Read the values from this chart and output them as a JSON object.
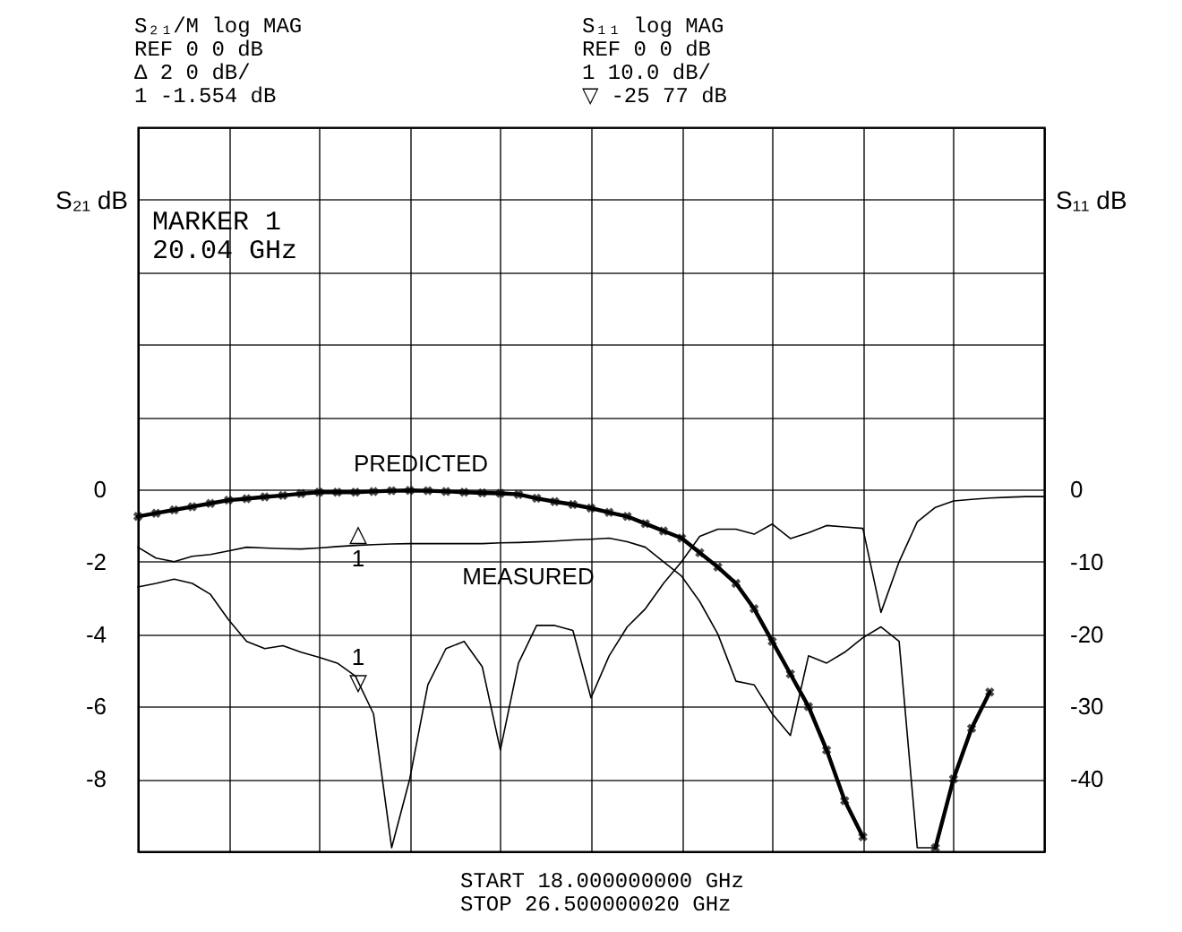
{
  "chart_data": {
    "type": "line",
    "ylabel": "S₂₁ dB",
    "y2label": "S₁₁ dB",
    "categories": [
      null,
      null,
      null,
      null,
      null,
      null,
      null,
      null,
      null,
      null,
      null,
      null,
      null,
      null,
      null,
      null,
      null,
      null,
      null,
      null,
      null,
      null,
      null,
      null,
      null,
      null,
      null,
      null,
      null,
      null,
      null,
      null,
      null,
      null,
      null,
      null,
      null,
      null,
      null,
      null,
      null,
      null,
      null,
      null,
      null,
      null,
      null,
      null,
      null,
      null,
      null
    ],
    "ylim": [
      -10,
      10
    ],
    "yticks": [
      {
        "value": 10,
        "label": null
      },
      {
        "value": 8,
        "label": null
      },
      {
        "value": 6,
        "label": null
      },
      {
        "value": 4,
        "label": null
      },
      {
        "value": 2,
        "label": null
      },
      0,
      -2,
      -4,
      -6,
      -8,
      {
        "value": -10,
        "label": null
      }
    ],
    "y2lim": [
      -50,
      50
    ],
    "y2ticks": [
      0,
      -10,
      -20,
      -30,
      -40
    ],
    "tick_labels": "y",
    "grid": true,
    "series": [
      {
        "color": "#000000",
        "marker": "cross",
        "values": [
          -0.75,
          -0.66,
          -0.57,
          -0.48,
          -0.39,
          -0.3,
          -0.26,
          -0.21,
          -0.17,
          -0.12,
          -0.08,
          -0.08,
          -0.08,
          -0.06,
          -0.04,
          -0.03,
          -0.04,
          -0.06,
          -0.08,
          -0.1,
          -0.11,
          -0.14,
          -0.25,
          -0.34,
          -0.42,
          -0.52,
          -0.64,
          -0.75,
          -0.95,
          -1.15,
          -1.35,
          -1.75,
          -2.15,
          -2.6,
          -3.3,
          -4.2,
          -5.1,
          -6.0,
          -7.2,
          -8.6,
          -9.6,
          null,
          null,
          null,
          null,
          null,
          null,
          null,
          null,
          null,
          null
        ]
      },
      {
        "color": "#000000",
        "marker": "cross",
        "values": [
          null,
          null,
          null,
          null,
          null,
          null,
          null,
          null,
          null,
          null,
          null,
          null,
          null,
          null,
          null,
          null,
          null,
          null,
          null,
          null,
          null,
          null,
          null,
          null,
          null,
          null,
          null,
          null,
          null,
          null,
          null,
          null,
          null,
          null,
          null,
          null,
          null,
          null,
          null,
          null,
          null,
          null,
          null,
          null,
          -9.9,
          -8.0,
          -6.6,
          -5.6,
          null,
          null,
          null
        ]
      },
      {
        "color": "#000000",
        "values": [
          -1.6,
          -1.9,
          -2.0,
          -1.85,
          -1.8,
          -1.7,
          -1.6,
          -1.62,
          -1.64,
          -1.65,
          -1.62,
          -1.58,
          -1.55,
          -1.53,
          -1.51,
          -1.5,
          -1.5,
          -1.5,
          -1.5,
          -1.5,
          -1.48,
          -1.47,
          -1.45,
          -1.43,
          -1.4,
          -1.38,
          -1.35,
          -1.45,
          -1.6,
          -2.0,
          -2.4,
          -3.1,
          -4.0,
          -5.3,
          -5.4,
          -6.2,
          -6.8,
          -4.6,
          -4.8,
          -4.5,
          -4.1,
          -3.8,
          -4.2,
          -9.9,
          -9.9,
          null,
          null,
          null,
          null,
          null,
          null
        ]
      },
      {
        "color": "#000000",
        "axis": "y2",
        "values": [
          -13.5,
          -13,
          -12.4,
          -13,
          -14.5,
          -18,
          -21,
          -22,
          -21.6,
          -22.5,
          -23.2,
          -24,
          -25.8,
          -31,
          -49.5,
          -40,
          -27,
          -22,
          -21,
          -24.5,
          -36,
          -24,
          -18.8,
          -18.8,
          -19.5,
          -28.8,
          -23,
          -19,
          -16.5,
          -13,
          -10,
          -6.5,
          -5.5,
          -5.5,
          -6.2,
          -4.8,
          -6.8,
          -6,
          -5,
          -5.2,
          -5.4,
          -17,
          -10,
          -4.5,
          -2.5,
          -1.6,
          -1.4,
          -1.2,
          -1.1,
          -1.0,
          -1.0
        ]
      }
    ],
    "annotations": [
      "S₂₁/M        log MAG\nREF 0 0 dB\nΔ     2 0 dB/\n1 -1.554 dB",
      "S₁₁          log MAG\nREF 0 0 dB\n1     10.0 dB/\n▽  -25 77 dB",
      "MARKER 1\n   20.04 GHz",
      "START   18.000000000 GHz\nSTOP    26.500000020 GHz",
      "PREDICTED",
      "MEASURED",
      "△\n1",
      "1\n▽"
    ]
  }
}
